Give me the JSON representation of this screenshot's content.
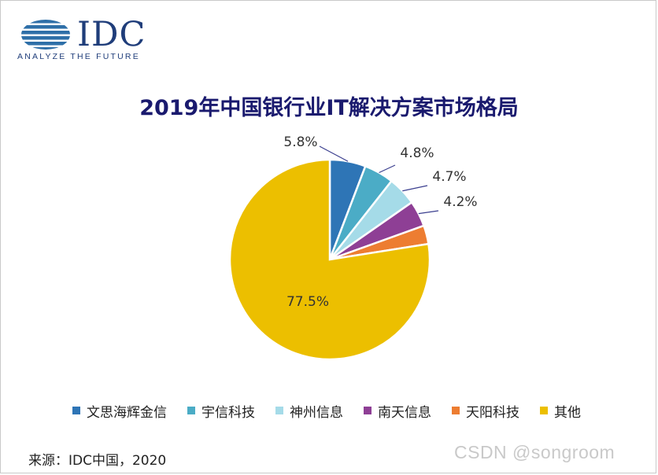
{
  "logo": {
    "text": "IDC",
    "tagline": "ANALYZE THE FUTURE",
    "color": "#1f3d7a"
  },
  "chart_data": {
    "type": "pie",
    "title": "2019年中国银行业IT解决方案市场格局",
    "categories": [
      "文思海辉金信",
      "宇信科技",
      "神州信息",
      "南天信息",
      "天阳科技",
      "其他"
    ],
    "values": [
      5.8,
      4.8,
      4.7,
      4.2,
      3.0,
      77.5
    ],
    "labels": [
      "5.8%",
      "4.8%",
      "4.7%",
      "4.2%",
      "",
      "77.5%"
    ],
    "colors": [
      "#2e75b6",
      "#4bacc6",
      "#a5dbe8",
      "#8e3f95",
      "#ed7d31",
      "#ecbf00"
    ],
    "legend_position": "bottom"
  },
  "source": "来源：IDC中国，2020",
  "watermark": "CSDN @songroom"
}
